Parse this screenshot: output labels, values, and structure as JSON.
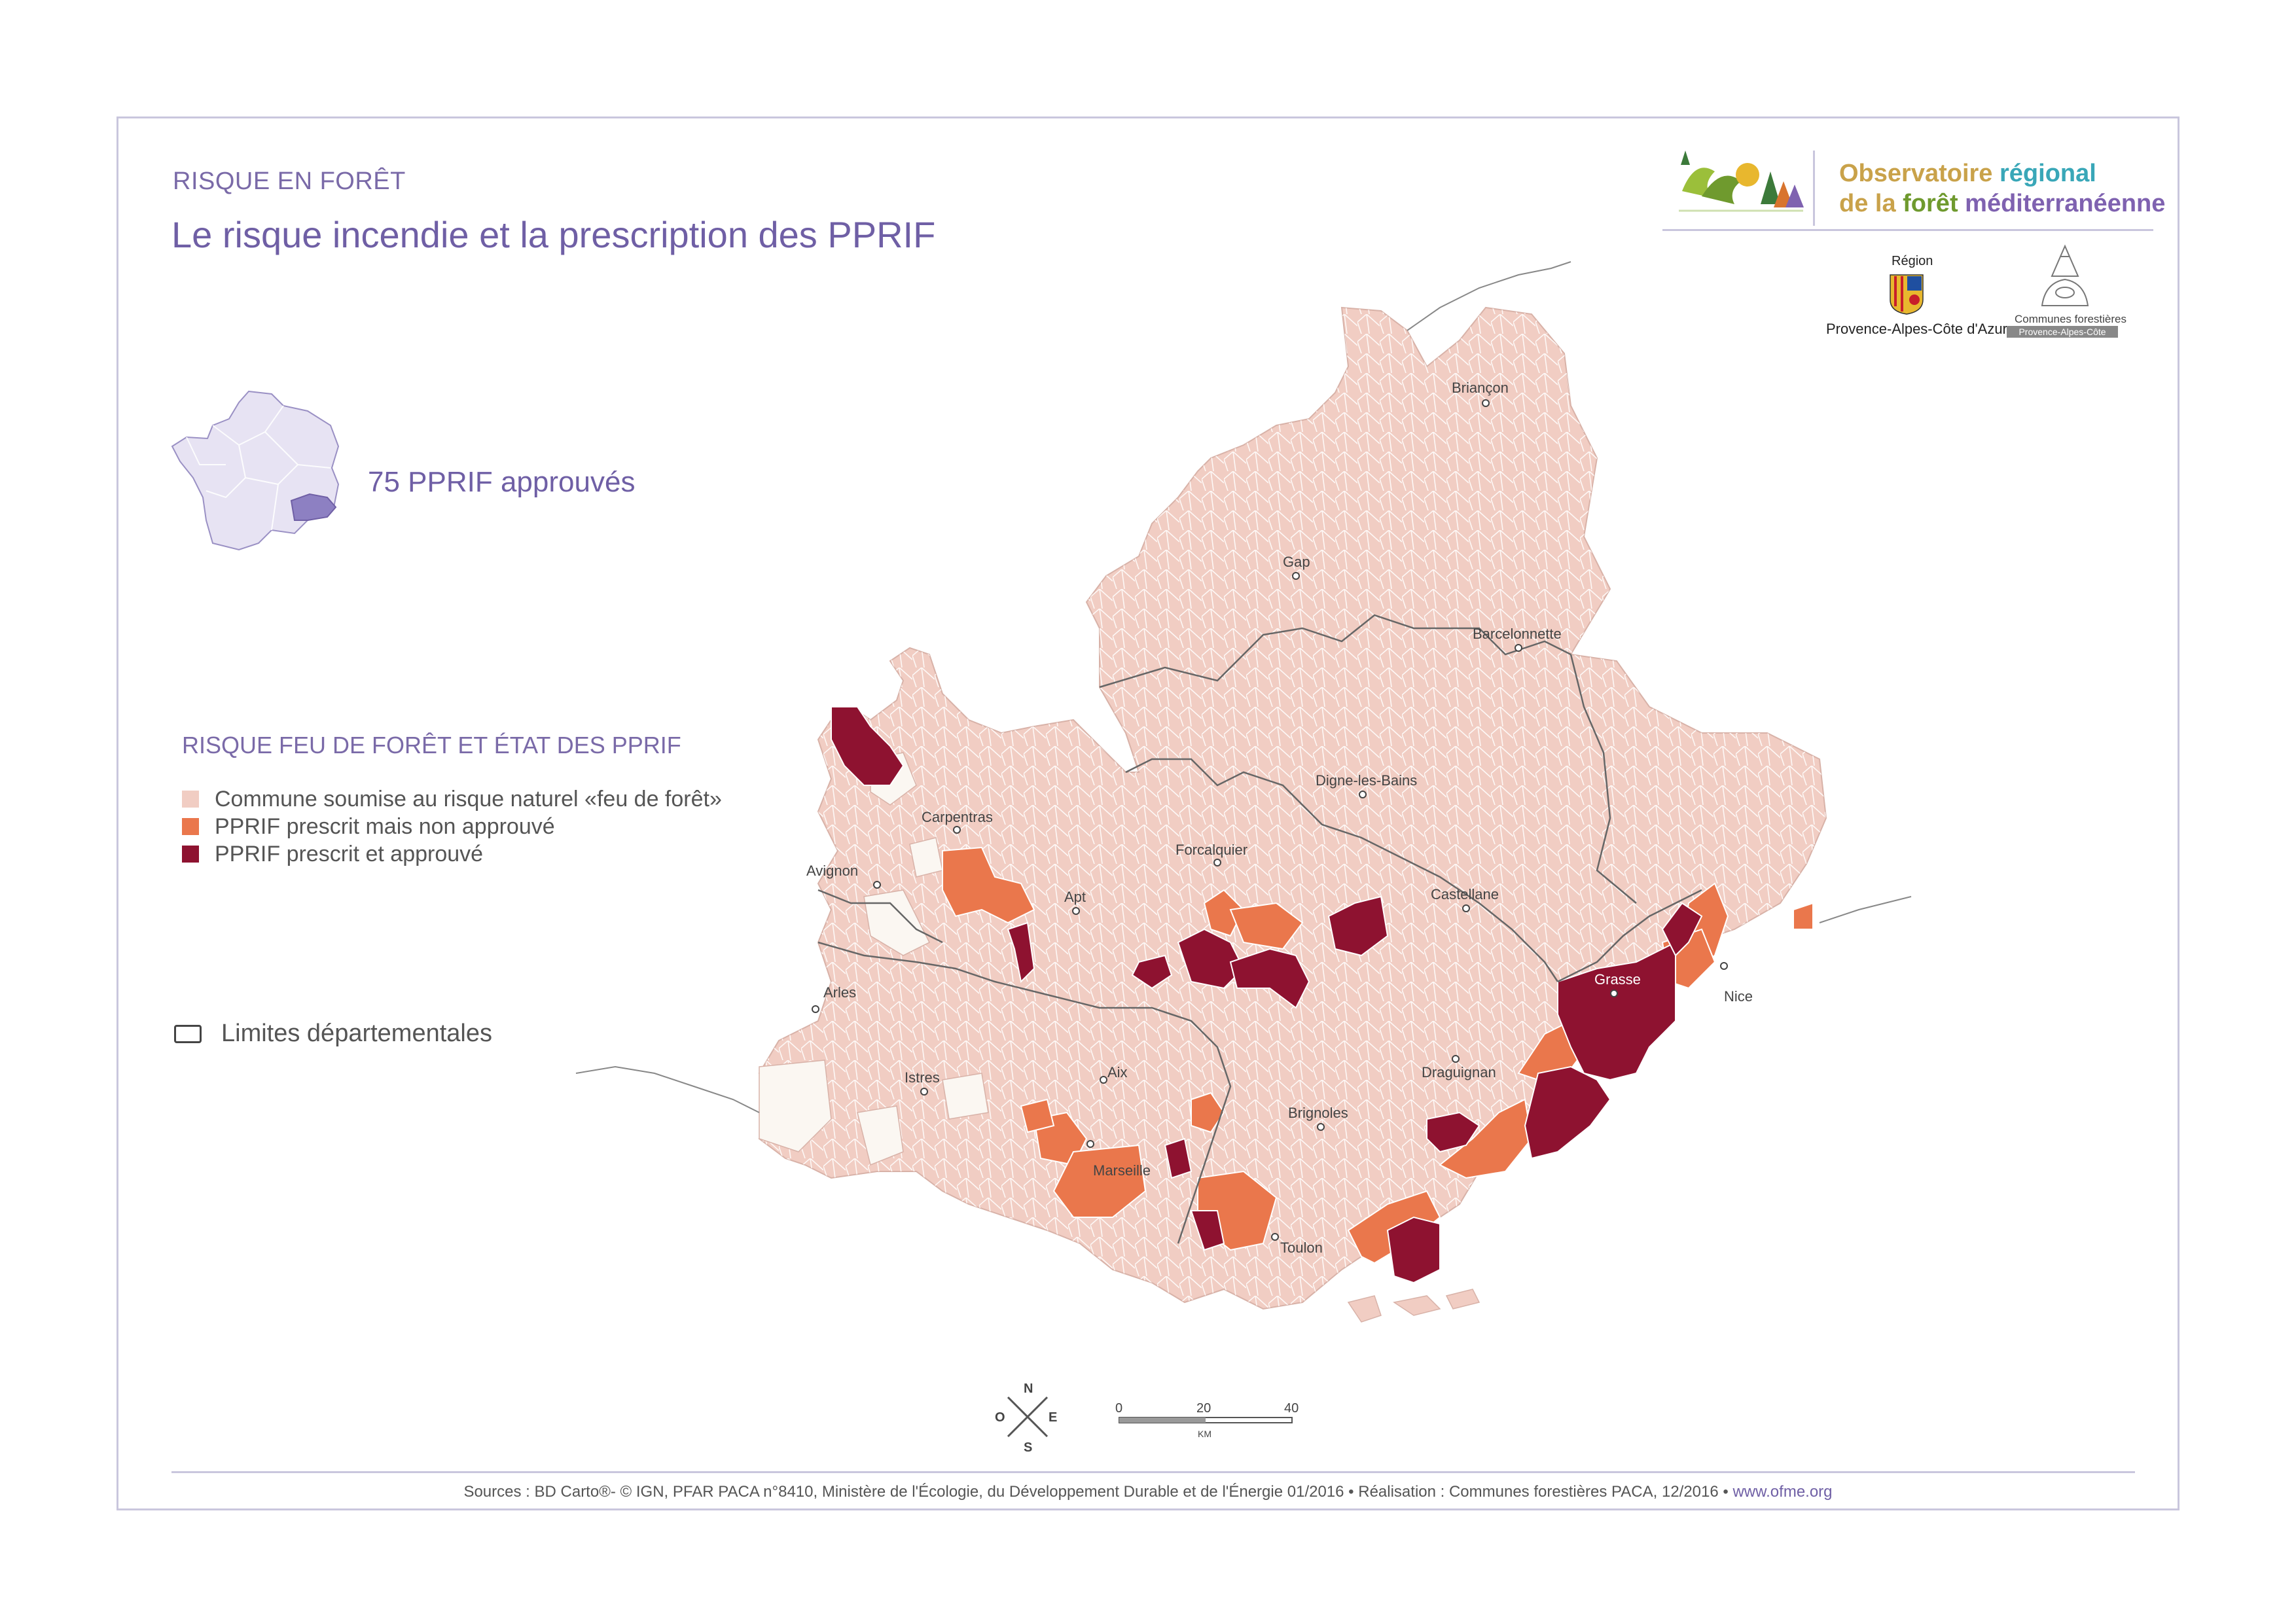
{
  "header": {
    "kicker": "RISQUE EN FORÊT",
    "title": "Le risque incendie et la prescription des PPRIF"
  },
  "inset": {
    "count_label": "75 PPRIF approuvés"
  },
  "legend": {
    "title": "RISQUE FEU DE FORÊT ET ÉTAT DES PPRIF",
    "items": [
      {
        "label": "Commune soumise au risque naturel «feu de forêt»",
        "color": "#f1cdc3"
      },
      {
        "label": "PPRIF prescrit mais non approuvé",
        "color": "#ea774c"
      },
      {
        "label": "PPRIF prescrit et approuvé",
        "color": "#8e1230"
      }
    ],
    "boundary_label": "Limites départementales"
  },
  "logos": {
    "ofme_line1_a": "Observatoire ",
    "ofme_line1_b": "régional",
    "ofme_line2_a": "de la ",
    "ofme_line2_b": "forêt ",
    "ofme_line2_c": "méditerranéenne",
    "region_label": "Région",
    "region_name": "Provence-Alpes-Côte d'Azur",
    "cf_label": "Communes forestières",
    "cf_band": "Provence-Alpes-Côte d'Azur"
  },
  "cities": [
    {
      "name": "Briançon"
    },
    {
      "name": "Gap"
    },
    {
      "name": "Barcelonnette"
    },
    {
      "name": "Digne-les-Bains"
    },
    {
      "name": "Carpentras"
    },
    {
      "name": "Forcalquier"
    },
    {
      "name": "Avignon"
    },
    {
      "name": "Apt"
    },
    {
      "name": "Castellane"
    },
    {
      "name": "Grasse"
    },
    {
      "name": "Nice"
    },
    {
      "name": "Arles"
    },
    {
      "name": "Draguignan"
    },
    {
      "name": "Istres"
    },
    {
      "name": "Aix"
    },
    {
      "name": "Brignoles"
    },
    {
      "name": "Marseille"
    },
    {
      "name": "Toulon"
    }
  ],
  "compass": {
    "n": "N",
    "s": "S",
    "e": "E",
    "w": "O"
  },
  "scale": {
    "t0": "0",
    "t1": "20",
    "t2": "40",
    "unit": "KM"
  },
  "footer": {
    "sources": "Sources : BD Carto®- © IGN, PFAR PACA n°8410,  Ministère de l'Écologie, du Développement Durable et de l'Énergie 01/2016 • Réalisation : Communes forestières PACA, 12/2016 • ",
    "link": "www.ofme.org"
  }
}
